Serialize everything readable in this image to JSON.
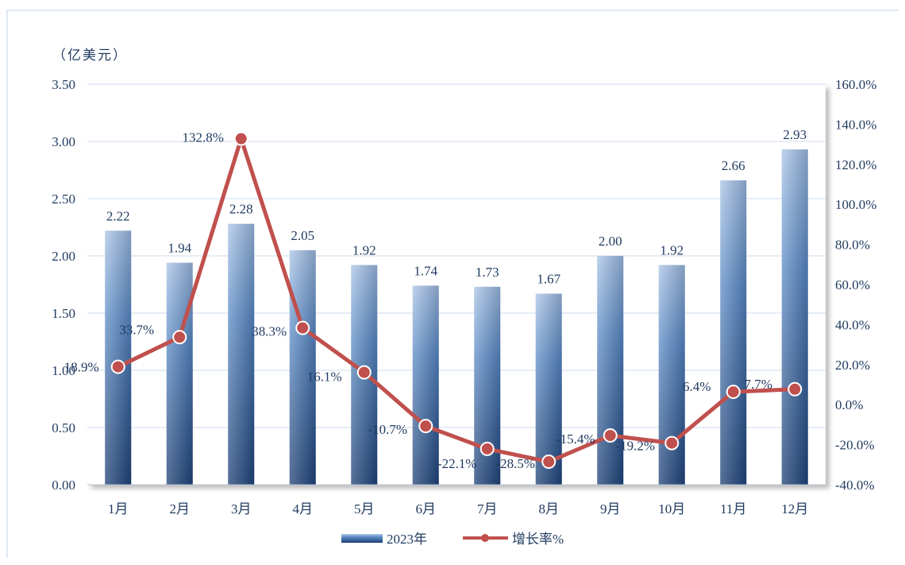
{
  "chart_data": {
    "type": "bar",
    "unit_label": "（亿美元）",
    "categories": [
      "1月",
      "2月",
      "3月",
      "4月",
      "5月",
      "6月",
      "7月",
      "8月",
      "9月",
      "10月",
      "11月",
      "12月"
    ],
    "series": [
      {
        "name": "2023年",
        "type": "bar",
        "axis": "left",
        "values": [
          2.22,
          1.94,
          2.28,
          2.05,
          1.92,
          1.74,
          1.73,
          1.67,
          2.0,
          1.92,
          2.66,
          2.93
        ],
        "labels": [
          "2.22",
          "1.94",
          "2.28",
          "2.05",
          "1.92",
          "1.74",
          "1.73",
          "1.67",
          "2.00",
          "1.92",
          "2.66",
          "2.93"
        ],
        "color": "#2e5f9e"
      },
      {
        "name": "增长率%",
        "type": "line",
        "axis": "right",
        "values": [
          18.9,
          33.7,
          132.8,
          38.3,
          16.1,
          -10.7,
          -22.1,
          -28.5,
          -15.4,
          -19.2,
          6.4,
          7.7
        ],
        "labels": [
          "18.9%",
          "33.7%",
          "132.8%",
          "38.3%",
          "16.1%",
          "-10.7%",
          "-22.1%",
          "-28.5%",
          "-15.4%",
          "-19.2%",
          "6.4%",
          "7.7%"
        ],
        "color": "#c0504d"
      }
    ],
    "y_left": {
      "min": 0,
      "max": 3.5,
      "step": 0.5,
      "ticks": [
        "0.00",
        "0.50",
        "1.00",
        "1.50",
        "2.00",
        "2.50",
        "3.00",
        "3.50"
      ]
    },
    "y_right": {
      "min": -40,
      "max": 160,
      "step": 20,
      "ticks": [
        "-40.0%",
        "-20.0%",
        "0.0%",
        "20.0%",
        "40.0%",
        "60.0%",
        "80.0%",
        "100.0%",
        "120.0%",
        "140.0%",
        "160.0%"
      ]
    },
    "grid": true,
    "legend_position": "bottom"
  }
}
